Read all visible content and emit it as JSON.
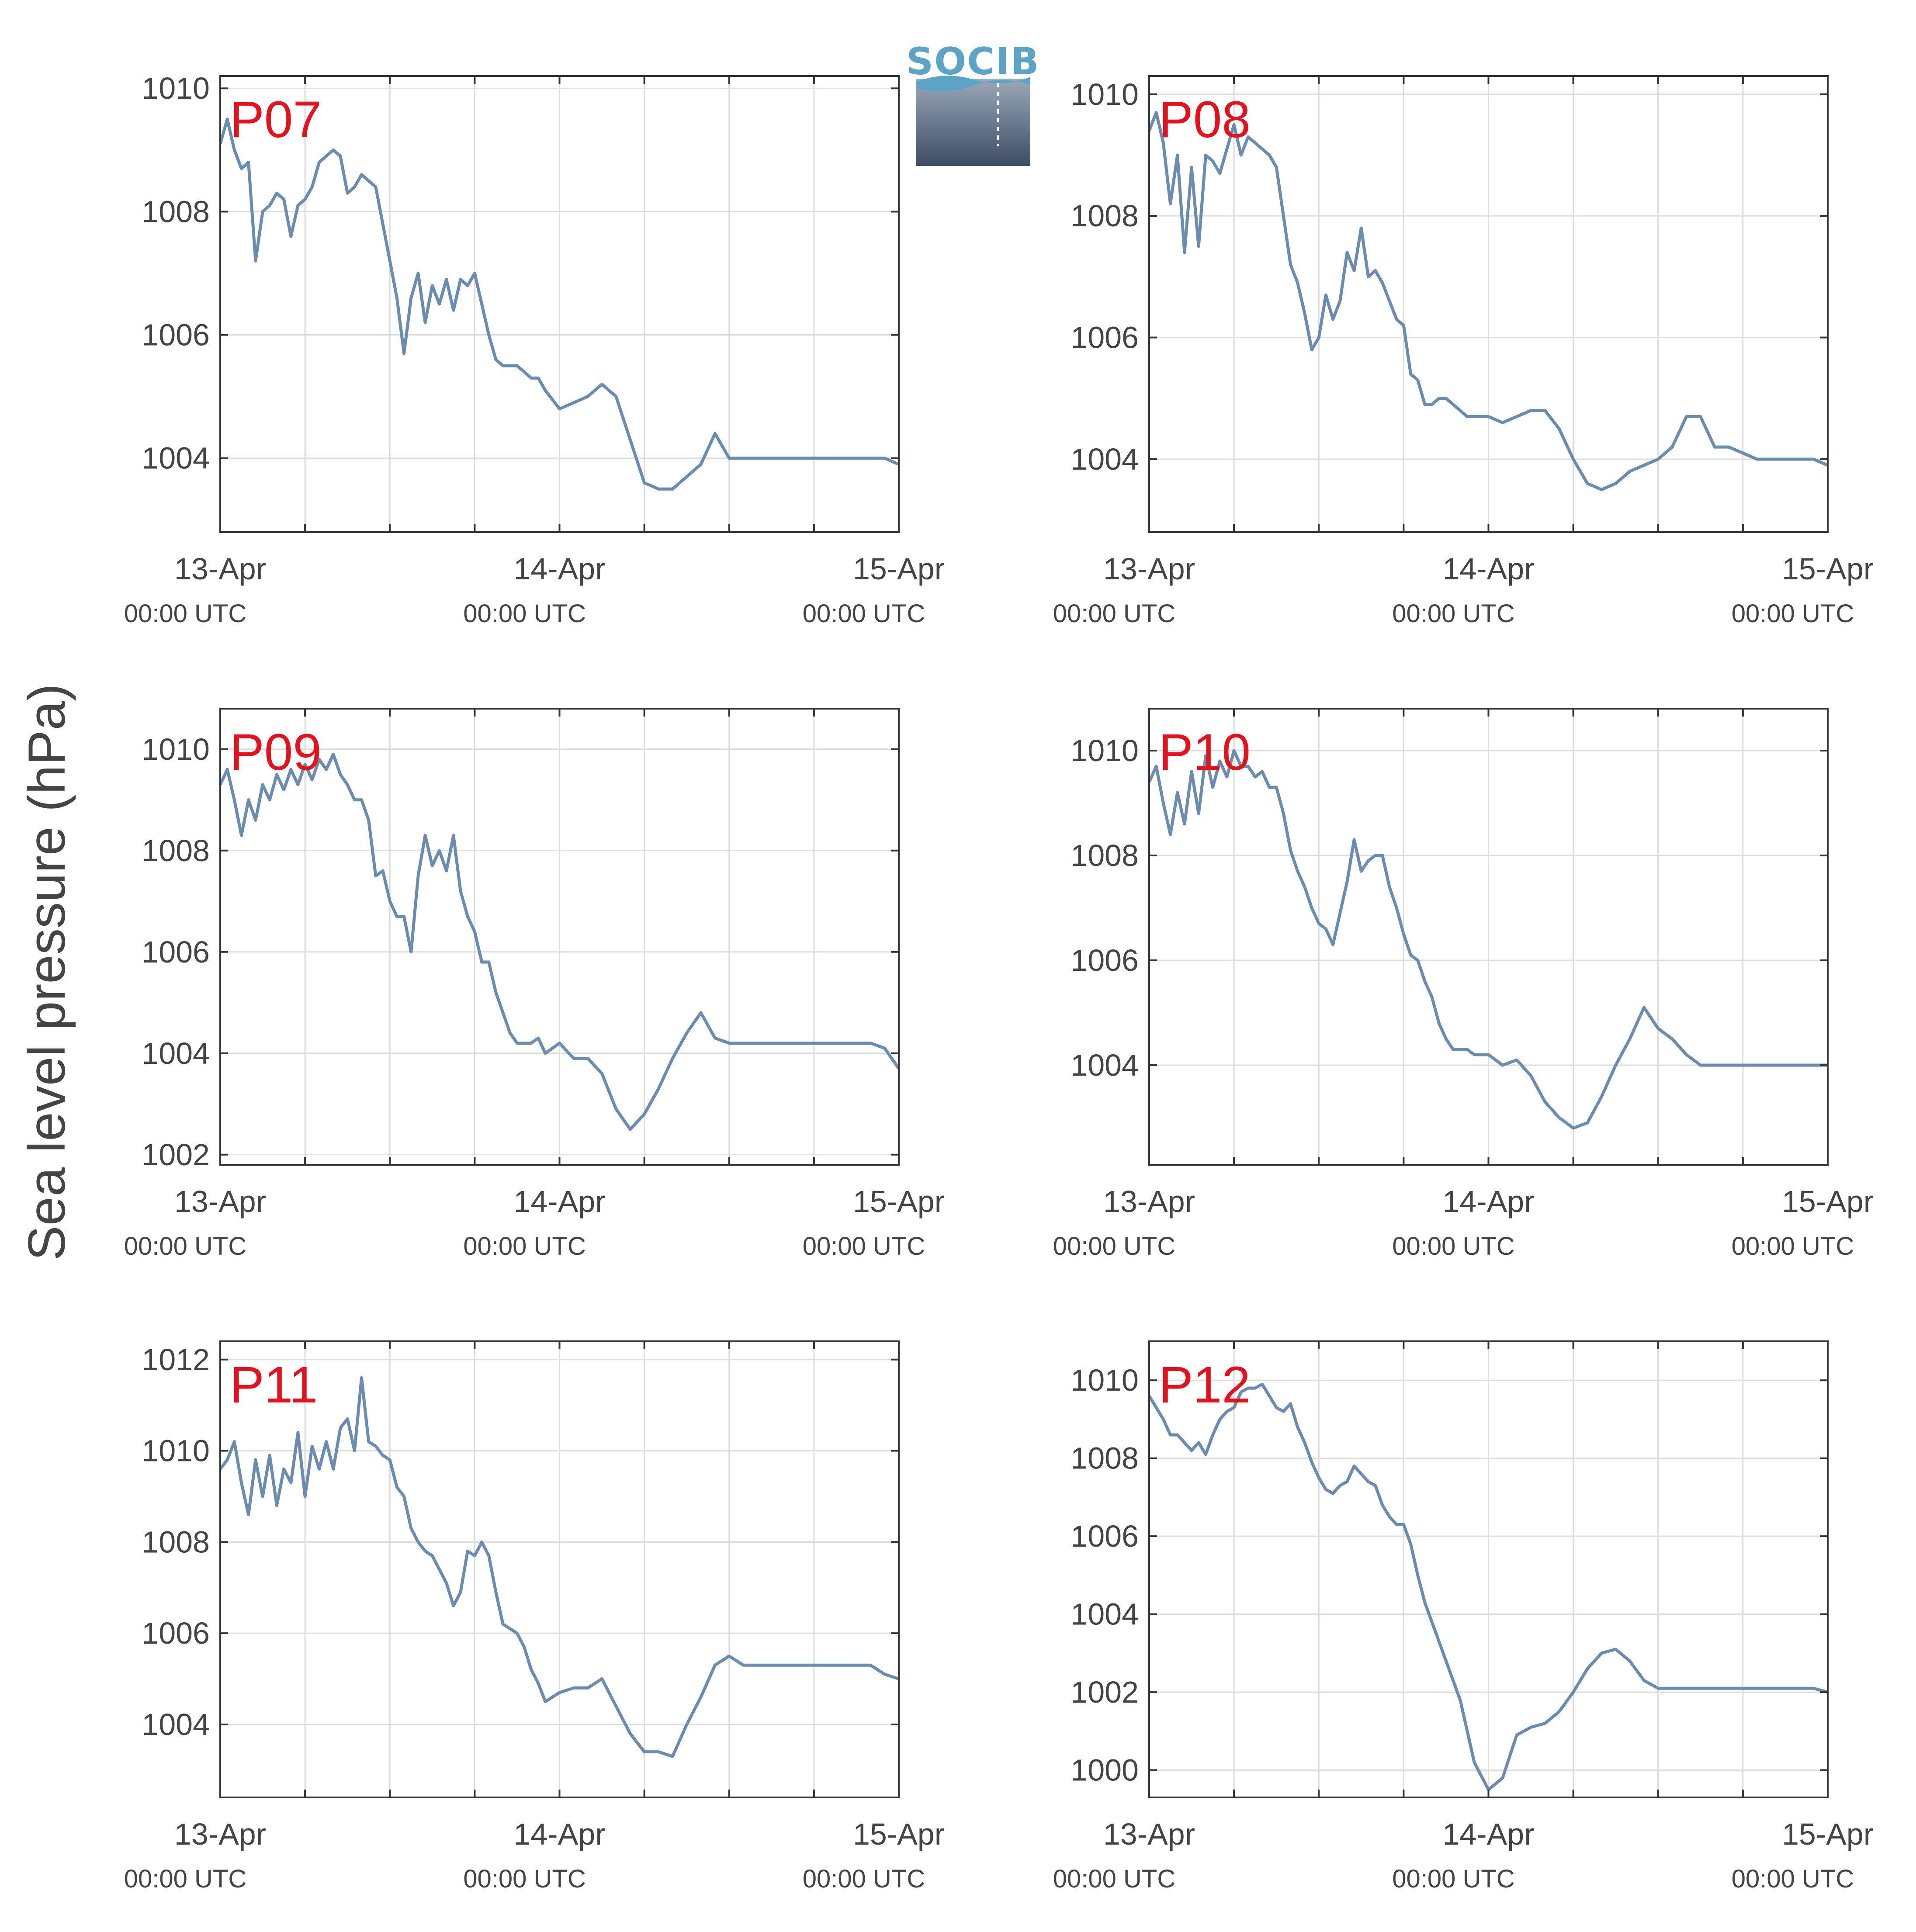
{
  "figure": {
    "ylabel": "Sea level pressure (hPa)",
    "logo_text": "SOCIB"
  },
  "chart_data": [
    {
      "type": "line",
      "panel": "P07",
      "xlim": [
        0,
        48
      ],
      "ylim": [
        1002.8,
        1010.2
      ],
      "yticks": [
        1004,
        1006,
        1008,
        1010
      ],
      "xticks": [
        {
          "h": 0,
          "date": "13-Apr",
          "time": "00:00 UTC"
        },
        {
          "h": 24,
          "date": "14-Apr",
          "time": "00:00 UTC"
        },
        {
          "h": 48,
          "date": "15-Apr",
          "time": "00:00 UTC"
        }
      ],
      "x_minor_ticks": [
        6,
        12,
        18,
        30,
        36,
        42
      ],
      "grid": true,
      "color": "#6b8cae",
      "x": [
        0,
        0.5,
        1,
        1.5,
        2,
        2.5,
        3,
        3.5,
        4,
        4.5,
        5,
        5.5,
        6,
        6.5,
        7,
        7.5,
        8,
        8.5,
        9,
        9.5,
        10,
        10.5,
        11,
        11.5,
        12,
        12.5,
        13,
        13.5,
        14,
        14.5,
        15,
        15.5,
        16,
        16.5,
        17,
        17.5,
        18,
        18.5,
        19,
        19.5,
        20,
        20.5,
        21,
        21.5,
        22,
        22.5,
        23,
        24,
        25,
        26,
        27,
        28,
        29,
        30,
        31,
        32,
        33,
        34,
        35,
        36,
        37,
        38,
        39,
        40,
        41,
        42,
        43,
        44,
        45,
        46,
        47,
        48
      ],
      "y": [
        1009.1,
        1009.5,
        1009.0,
        1008.7,
        1008.8,
        1007.2,
        1008.0,
        1008.1,
        1008.3,
        1008.2,
        1007.6,
        1008.1,
        1008.2,
        1008.4,
        1008.8,
        1008.9,
        1009.0,
        1008.9,
        1008.3,
        1008.4,
        1008.6,
        1008.5,
        1008.4,
        1007.8,
        1007.2,
        1006.6,
        1005.7,
        1006.6,
        1007.0,
        1006.2,
        1006.8,
        1006.5,
        1006.9,
        1006.4,
        1006.9,
        1006.8,
        1007.0,
        1006.5,
        1006.0,
        1005.6,
        1005.5,
        1005.5,
        1005.5,
        1005.4,
        1005.3,
        1005.3,
        1005.1,
        1004.8,
        1004.9,
        1005.0,
        1005.2,
        1005.0,
        1004.3,
        1003.6,
        1003.5,
        1003.5,
        1003.7,
        1003.9,
        1004.4,
        1004.0,
        1004.0,
        1004.0,
        1004.0,
        1004.0,
        1004.0,
        1004.0,
        1004.0,
        1004.0,
        1004.0,
        1004.0,
        1004.0,
        1003.9
      ]
    },
    {
      "type": "line",
      "panel": "P08",
      "xlim": [
        0,
        48
      ],
      "ylim": [
        1002.8,
        1010.3
      ],
      "yticks": [
        1004,
        1006,
        1008,
        1010
      ],
      "xticks": [
        {
          "h": 0,
          "date": "13-Apr",
          "time": "00:00 UTC"
        },
        {
          "h": 24,
          "date": "14-Apr",
          "time": "00:00 UTC"
        },
        {
          "h": 48,
          "date": "15-Apr",
          "time": "00:00 UTC"
        }
      ],
      "x_minor_ticks": [
        6,
        12,
        18,
        30,
        36,
        42
      ],
      "grid": true,
      "color": "#6b8cae",
      "x": [
        0,
        0.5,
        1,
        1.5,
        2,
        2.5,
        3,
        3.5,
        4,
        4.5,
        5,
        5.5,
        6,
        6.5,
        7,
        7.5,
        8,
        8.5,
        9,
        9.5,
        10,
        10.5,
        11,
        11.5,
        12,
        12.5,
        13,
        13.5,
        14,
        14.5,
        15,
        15.5,
        16,
        16.5,
        17,
        17.5,
        18,
        18.5,
        19,
        19.5,
        20,
        20.5,
        21,
        21.5,
        22,
        22.5,
        23,
        24,
        25,
        26,
        27,
        28,
        29,
        30,
        31,
        32,
        33,
        34,
        35,
        36,
        37,
        38,
        39,
        40,
        41,
        42,
        43,
        44,
        45,
        46,
        47,
        48
      ],
      "y": [
        1009.4,
        1009.7,
        1009.2,
        1008.2,
        1009.0,
        1007.4,
        1008.8,
        1007.5,
        1009.0,
        1008.9,
        1008.7,
        1009.1,
        1009.5,
        1009.0,
        1009.3,
        1009.2,
        1009.1,
        1009.0,
        1008.8,
        1008.0,
        1007.2,
        1006.9,
        1006.4,
        1005.8,
        1006.0,
        1006.7,
        1006.3,
        1006.6,
        1007.4,
        1007.1,
        1007.8,
        1007.0,
        1007.1,
        1006.9,
        1006.6,
        1006.3,
        1006.2,
        1005.4,
        1005.3,
        1004.9,
        1004.9,
        1005.0,
        1005.0,
        1004.9,
        1004.8,
        1004.7,
        1004.7,
        1004.7,
        1004.6,
        1004.7,
        1004.8,
        1004.8,
        1004.5,
        1004.0,
        1003.6,
        1003.5,
        1003.6,
        1003.8,
        1003.9,
        1004.0,
        1004.2,
        1004.7,
        1004.7,
        1004.2,
        1004.2,
        1004.1,
        1004.0,
        1004.0,
        1004.0,
        1004.0,
        1004.0,
        1003.9
      ]
    },
    {
      "type": "line",
      "panel": "P09",
      "xlim": [
        0,
        48
      ],
      "ylim": [
        1001.8,
        1010.8
      ],
      "yticks": [
        1002,
        1004,
        1006,
        1008,
        1010
      ],
      "xticks": [
        {
          "h": 0,
          "date": "13-Apr",
          "time": "00:00 UTC"
        },
        {
          "h": 24,
          "date": "14-Apr",
          "time": "00:00 UTC"
        },
        {
          "h": 48,
          "date": "15-Apr",
          "time": "00:00 UTC"
        }
      ],
      "x_minor_ticks": [
        6,
        12,
        18,
        30,
        36,
        42
      ],
      "grid": true,
      "color": "#6b8cae",
      "x": [
        0,
        0.5,
        1,
        1.5,
        2,
        2.5,
        3,
        3.5,
        4,
        4.5,
        5,
        5.5,
        6,
        6.5,
        7,
        7.5,
        8,
        8.5,
        9,
        9.5,
        10,
        10.5,
        11,
        11.5,
        12,
        12.5,
        13,
        13.5,
        14,
        14.5,
        15,
        15.5,
        16,
        16.5,
        17,
        17.5,
        18,
        18.5,
        19,
        19.5,
        20,
        20.5,
        21,
        21.5,
        22,
        22.5,
        23,
        24,
        25,
        26,
        27,
        28,
        29,
        30,
        31,
        32,
        33,
        34,
        35,
        36,
        37,
        38,
        39,
        40,
        41,
        42,
        43,
        44,
        45,
        46,
        47,
        48
      ],
      "y": [
        1009.3,
        1009.6,
        1009.0,
        1008.3,
        1009.0,
        1008.6,
        1009.3,
        1009.0,
        1009.5,
        1009.2,
        1009.6,
        1009.3,
        1009.7,
        1009.4,
        1009.8,
        1009.6,
        1009.9,
        1009.5,
        1009.3,
        1009.0,
        1009.0,
        1008.6,
        1007.5,
        1007.6,
        1007.0,
        1006.7,
        1006.7,
        1006.0,
        1007.5,
        1008.3,
        1007.7,
        1008.0,
        1007.6,
        1008.3,
        1007.2,
        1006.7,
        1006.4,
        1005.8,
        1005.8,
        1005.2,
        1004.8,
        1004.4,
        1004.2,
        1004.2,
        1004.2,
        1004.3,
        1004.0,
        1004.2,
        1003.9,
        1003.9,
        1003.6,
        1002.9,
        1002.5,
        1002.8,
        1003.3,
        1003.9,
        1004.4,
        1004.8,
        1004.3,
        1004.2,
        1004.2,
        1004.2,
        1004.2,
        1004.2,
        1004.2,
        1004.2,
        1004.2,
        1004.2,
        1004.2,
        1004.2,
        1004.1,
        1003.7
      ]
    },
    {
      "type": "line",
      "panel": "P10",
      "xlim": [
        0,
        48
      ],
      "ylim": [
        1002.1,
        1010.8
      ],
      "yticks": [
        1004,
        1006,
        1008,
        1010
      ],
      "xticks": [
        {
          "h": 0,
          "date": "13-Apr",
          "time": "00:00 UTC"
        },
        {
          "h": 24,
          "date": "14-Apr",
          "time": "00:00 UTC"
        },
        {
          "h": 48,
          "date": "15-Apr",
          "time": "00:00 UTC"
        }
      ],
      "x_minor_ticks": [
        6,
        12,
        18,
        30,
        36,
        42
      ],
      "grid": true,
      "color": "#6b8cae",
      "x": [
        0,
        0.5,
        1,
        1.5,
        2,
        2.5,
        3,
        3.5,
        4,
        4.5,
        5,
        5.5,
        6,
        6.5,
        7,
        7.5,
        8,
        8.5,
        9,
        9.5,
        10,
        10.5,
        11,
        11.5,
        12,
        12.5,
        13,
        13.5,
        14,
        14.5,
        15,
        15.5,
        16,
        16.5,
        17,
        17.5,
        18,
        18.5,
        19,
        19.5,
        20,
        20.5,
        21,
        21.5,
        22,
        22.5,
        23,
        24,
        25,
        26,
        27,
        28,
        29,
        30,
        31,
        32,
        33,
        34,
        35,
        36,
        37,
        38,
        39,
        40,
        41,
        42,
        43,
        44,
        45,
        46,
        47,
        48
      ],
      "y": [
        1009.4,
        1009.7,
        1009.0,
        1008.4,
        1009.2,
        1008.6,
        1009.6,
        1008.8,
        1009.9,
        1009.3,
        1009.8,
        1009.5,
        1010.0,
        1009.7,
        1009.7,
        1009.5,
        1009.6,
        1009.3,
        1009.3,
        1008.8,
        1008.1,
        1007.7,
        1007.4,
        1007.0,
        1006.7,
        1006.6,
        1006.3,
        1006.9,
        1007.5,
        1008.3,
        1007.7,
        1007.9,
        1008.0,
        1008.0,
        1007.4,
        1007.0,
        1006.5,
        1006.1,
        1006.0,
        1005.6,
        1005.3,
        1004.8,
        1004.5,
        1004.3,
        1004.3,
        1004.3,
        1004.2,
        1004.2,
        1004.0,
        1004.1,
        1003.8,
        1003.3,
        1003.0,
        1002.8,
        1002.9,
        1003.4,
        1004.0,
        1004.5,
        1005.1,
        1004.7,
        1004.5,
        1004.2,
        1004.0,
        1004.0,
        1004.0,
        1004.0,
        1004.0,
        1004.0,
        1004.0,
        1004.0,
        1004.0,
        1004.0
      ]
    },
    {
      "type": "line",
      "panel": "P11",
      "xlim": [
        0,
        48
      ],
      "ylim": [
        1002.4,
        1012.4
      ],
      "yticks": [
        1004,
        1006,
        1008,
        1010,
        1012
      ],
      "xticks": [
        {
          "h": 0,
          "date": "13-Apr",
          "time": "00:00 UTC"
        },
        {
          "h": 24,
          "date": "14-Apr",
          "time": "00:00 UTC"
        },
        {
          "h": 48,
          "date": "15-Apr",
          "time": "00:00 UTC"
        }
      ],
      "x_minor_ticks": [
        6,
        12,
        18,
        30,
        36,
        42
      ],
      "grid": true,
      "color": "#6b8cae",
      "x": [
        0,
        0.5,
        1,
        1.5,
        2,
        2.5,
        3,
        3.5,
        4,
        4.5,
        5,
        5.5,
        6,
        6.5,
        7,
        7.5,
        8,
        8.5,
        9,
        9.5,
        10,
        10.5,
        11,
        11.5,
        12,
        12.5,
        13,
        13.5,
        14,
        14.5,
        15,
        15.5,
        16,
        16.5,
        17,
        17.5,
        18,
        18.5,
        19,
        19.5,
        20,
        20.5,
        21,
        21.5,
        22,
        22.5,
        23,
        24,
        25,
        26,
        27,
        28,
        29,
        30,
        31,
        32,
        33,
        34,
        35,
        36,
        37,
        38,
        39,
        40,
        41,
        42,
        43,
        44,
        45,
        46,
        47,
        48
      ],
      "y": [
        1009.6,
        1009.8,
        1010.2,
        1009.3,
        1008.6,
        1009.8,
        1009.0,
        1009.9,
        1008.8,
        1009.6,
        1009.3,
        1010.4,
        1009.0,
        1010.1,
        1009.6,
        1010.2,
        1009.6,
        1010.5,
        1010.7,
        1010.0,
        1011.6,
        1010.2,
        1010.1,
        1009.9,
        1009.8,
        1009.2,
        1009.0,
        1008.3,
        1008.0,
        1007.8,
        1007.7,
        1007.4,
        1007.1,
        1006.6,
        1006.9,
        1007.8,
        1007.7,
        1008.0,
        1007.7,
        1006.9,
        1006.2,
        1006.1,
        1006.0,
        1005.7,
        1005.2,
        1004.9,
        1004.5,
        1004.7,
        1004.8,
        1004.8,
        1005.0,
        1004.4,
        1003.8,
        1003.4,
        1003.4,
        1003.3,
        1004.0,
        1004.6,
        1005.3,
        1005.5,
        1005.3,
        1005.3,
        1005.3,
        1005.3,
        1005.3,
        1005.3,
        1005.3,
        1005.3,
        1005.3,
        1005.3,
        1005.1,
        1005.0
      ]
    },
    {
      "type": "line",
      "panel": "P12",
      "xlim": [
        0,
        48
      ],
      "ylim": [
        999.3,
        1011.0
      ],
      "yticks": [
        1000,
        1002,
        1004,
        1006,
        1008,
        1010
      ],
      "xticks": [
        {
          "h": 0,
          "date": "13-Apr",
          "time": "00:00 UTC"
        },
        {
          "h": 24,
          "date": "14-Apr",
          "time": "00:00 UTC"
        },
        {
          "h": 48,
          "date": "15-Apr",
          "time": "00:00 UTC"
        }
      ],
      "x_minor_ticks": [
        6,
        12,
        18,
        30,
        36,
        42
      ],
      "grid": true,
      "color": "#6b8cae",
      "x": [
        0,
        0.5,
        1,
        1.5,
        2,
        2.5,
        3,
        3.5,
        4,
        4.5,
        5,
        5.5,
        6,
        6.5,
        7,
        7.5,
        8,
        8.5,
        9,
        9.5,
        10,
        10.5,
        11,
        11.5,
        12,
        12.5,
        13,
        13.5,
        14,
        14.5,
        15,
        15.5,
        16,
        16.5,
        17,
        17.5,
        18,
        18.5,
        19,
        19.5,
        20,
        20.5,
        21,
        21.5,
        22,
        22.5,
        23,
        24,
        25,
        26,
        27,
        28,
        29,
        30,
        31,
        32,
        33,
        34,
        35,
        36,
        37,
        38,
        39,
        40,
        41,
        42,
        43,
        44,
        45,
        46,
        47,
        48
      ],
      "y": [
        1009.6,
        1009.3,
        1009.0,
        1008.6,
        1008.6,
        1008.4,
        1008.2,
        1008.4,
        1008.1,
        1008.6,
        1009.0,
        1009.2,
        1009.3,
        1009.7,
        1009.8,
        1009.8,
        1009.9,
        1009.6,
        1009.3,
        1009.2,
        1009.4,
        1008.8,
        1008.4,
        1007.9,
        1007.5,
        1007.2,
        1007.1,
        1007.3,
        1007.4,
        1007.8,
        1007.6,
        1007.4,
        1007.3,
        1006.8,
        1006.5,
        1006.3,
        1006.3,
        1005.8,
        1005.0,
        1004.3,
        1003.8,
        1003.3,
        1002.8,
        1002.3,
        1001.8,
        1001.0,
        1000.2,
        999.5,
        999.8,
        1000.9,
        1001.1,
        1001.2,
        1001.5,
        1002.0,
        1002.6,
        1003.0,
        1003.1,
        1002.8,
        1002.3,
        1002.1,
        1002.1,
        1002.1,
        1002.1,
        1002.1,
        1002.1,
        1002.1,
        1002.1,
        1002.1,
        1002.1,
        1002.1,
        1002.1,
        1002.0
      ]
    }
  ]
}
